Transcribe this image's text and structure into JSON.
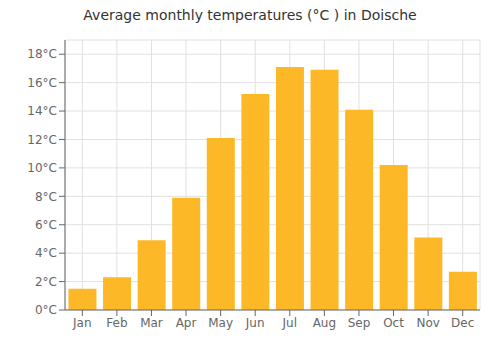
{
  "chart_data": {
    "type": "bar",
    "title": "Average monthly temperatures (°C ) in Doische",
    "categories": [
      "Jan",
      "Feb",
      "Mar",
      "Apr",
      "May",
      "Jun",
      "Jul",
      "Aug",
      "Sep",
      "Oct",
      "Nov",
      "Dec"
    ],
    "values": [
      1.5,
      2.3,
      4.9,
      7.9,
      12.1,
      15.2,
      17.1,
      16.9,
      14.1,
      10.2,
      5.1,
      2.7
    ],
    "color": "#FDB827",
    "ylim": [
      0,
      19
    ],
    "yticks": [
      {
        "value": 0,
        "label": "0°C"
      },
      {
        "value": 2,
        "label": "2°C"
      },
      {
        "value": 4,
        "label": "4°C"
      },
      {
        "value": 6,
        "label": "6°C"
      },
      {
        "value": 8,
        "label": "8°C"
      },
      {
        "value": 10,
        "label": "10°C"
      },
      {
        "value": 12,
        "label": "12°C"
      },
      {
        "value": 14,
        "label": "14°C"
      },
      {
        "value": 16,
        "label": "16°C"
      },
      {
        "value": 18,
        "label": "18°C"
      }
    ],
    "grid": true
  }
}
